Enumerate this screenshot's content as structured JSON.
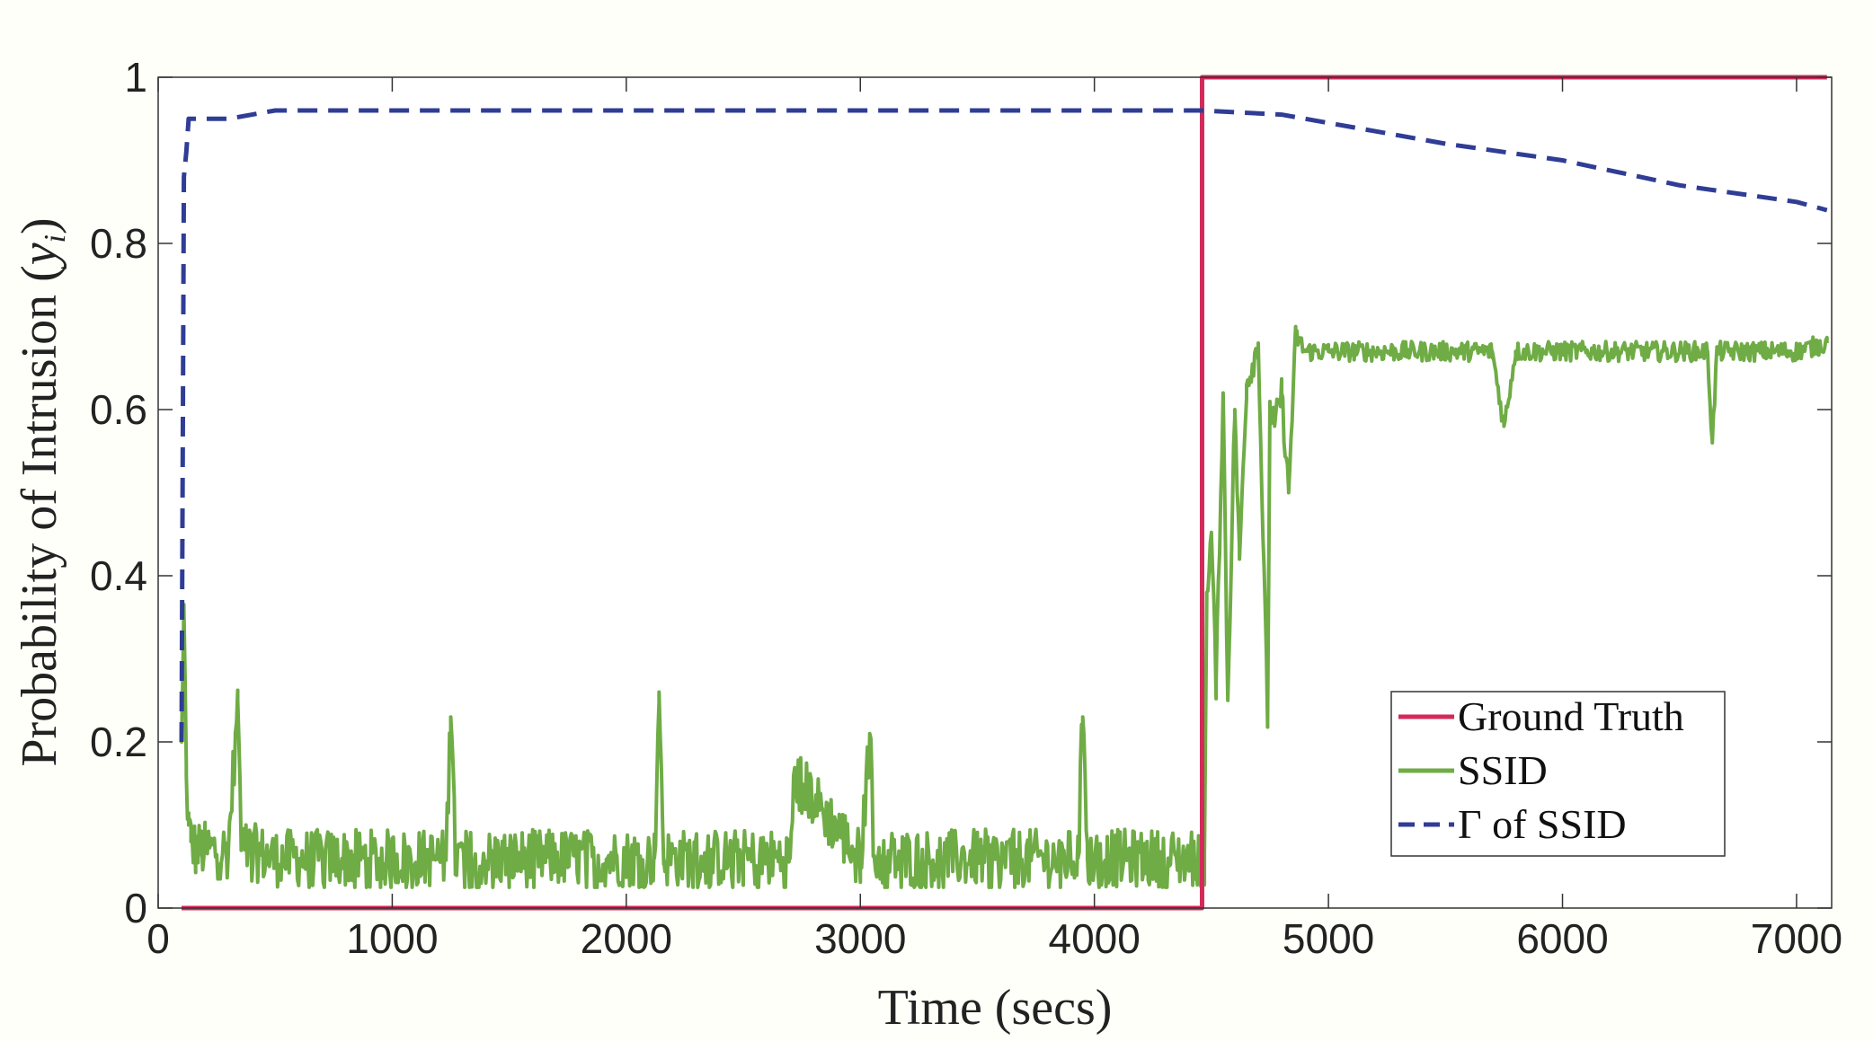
{
  "chart_data": {
    "type": "line",
    "xlabel": "Time (secs)",
    "ylabel": "Probability of Intrusion (",
    "ylabel_var": "y",
    "ylabel_sub": "i",
    "ylabel_close": ")",
    "xlim": [
      0,
      7150
    ],
    "ylim": [
      0,
      1
    ],
    "xticks": [
      0,
      1000,
      2000,
      3000,
      4000,
      5000,
      6000,
      7000
    ],
    "yticks": [
      0,
      0.2,
      0.4,
      0.6,
      0.8,
      1
    ],
    "xtick_labels": [
      "0",
      "1000",
      "2000",
      "3000",
      "4000",
      "5000",
      "6000",
      "7000"
    ],
    "ytick_labels": [
      "0",
      "0.2",
      "0.4",
      "0.6",
      "0.8",
      "1"
    ],
    "grid": false,
    "legend_position": "bottom-right",
    "series": [
      {
        "name": "Ground Truth",
        "color": "#d42a5a",
        "style": "solid",
        "x": [
          100,
          4460,
          4460,
          7130
        ],
        "y": [
          0,
          0,
          1,
          1
        ]
      },
      {
        "name": "SSID",
        "color": "#6fac45",
        "style": "solid",
        "noise": true,
        "x": [
          100,
          110,
          120,
          130,
          140,
          160,
          200,
          300,
          340,
          355,
          370,
          500,
          1000,
          1230,
          1250,
          1270,
          1500,
          2000,
          2120,
          2140,
          2160,
          2500,
          2700,
          2720,
          3000,
          3040,
          3060,
          3500,
          3930,
          3950,
          3970,
          4400,
          4470,
          4480,
          4500,
          4520,
          4550,
          4570,
          4600,
          4620,
          4650,
          4700,
          4740,
          4750,
          4770,
          4800,
          4830,
          4860,
          4900,
          5000,
          5100,
          5500,
          5700,
          5750,
          5800,
          6500,
          6620,
          6640,
          6660,
          7000,
          7130
        ],
        "y": [
          0.2,
          0.36,
          0.16,
          0.1,
          0.08,
          0.07,
          0.07,
          0.07,
          0.25,
          0.07,
          0.07,
          0.06,
          0.06,
          0.06,
          0.23,
          0.06,
          0.06,
          0.06,
          0.06,
          0.26,
          0.06,
          0.06,
          0.06,
          0.16,
          0.06,
          0.21,
          0.06,
          0.06,
          0.06,
          0.23,
          0.06,
          0.06,
          0.06,
          0.38,
          0.45,
          0.27,
          0.62,
          0.25,
          0.6,
          0.42,
          0.63,
          0.68,
          0.23,
          0.6,
          0.58,
          0.62,
          0.5,
          0.69,
          0.67,
          0.67,
          0.67,
          0.67,
          0.67,
          0.58,
          0.67,
          0.67,
          0.67,
          0.56,
          0.67,
          0.67,
          0.68
        ]
      },
      {
        "name": "Γ of SSID",
        "color": "#2f3d95",
        "style": "dashed",
        "x": [
          100,
          110,
          120,
          130,
          150,
          200,
          300,
          500,
          1000,
          2000,
          3000,
          4000,
          4460,
          4800,
          5500,
          6000,
          6500,
          7000,
          7130
        ],
        "y": [
          0.2,
          0.88,
          0.91,
          0.95,
          0.95,
          0.95,
          0.95,
          0.96,
          0.96,
          0.96,
          0.96,
          0.96,
          0.96,
          0.955,
          0.92,
          0.9,
          0.87,
          0.85,
          0.84
        ]
      }
    ]
  }
}
